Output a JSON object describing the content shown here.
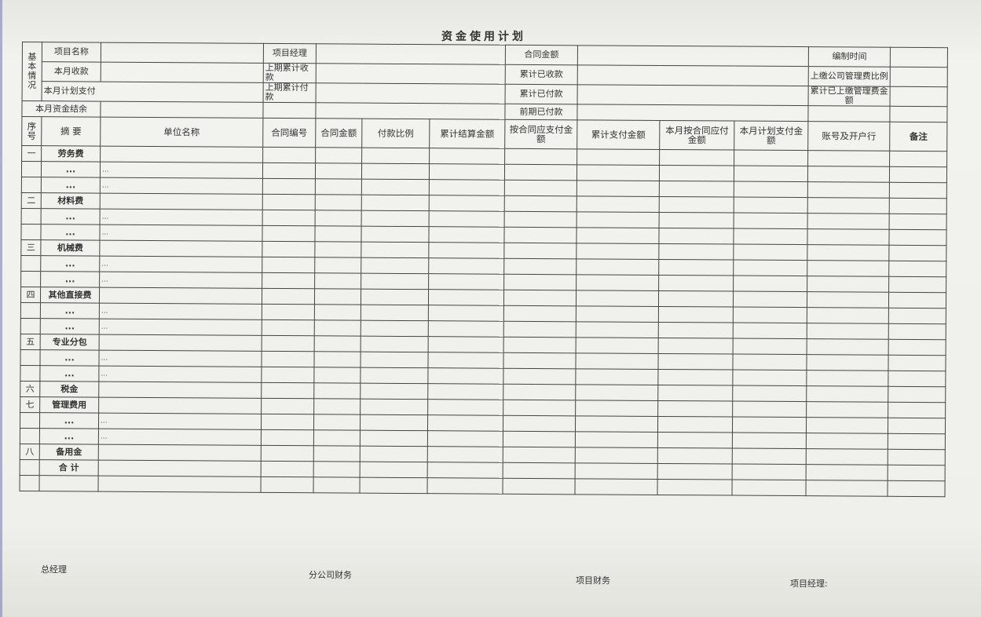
{
  "title": "资金使用计划",
  "basic_info": {
    "section_label": "基本情况",
    "project_name": "项目名称",
    "month_receipt": "本月收款",
    "month_plan_pay": "本月计划支付",
    "month_balance": "本月资金结余",
    "project_manager": "项目经理",
    "prev_cum_receipt": "上期累计收款",
    "prev_cum_pay": "上期累计付款",
    "contract_amount": "合同金额",
    "cum_received": "累计已收款",
    "cum_paid": "累计已付款",
    "prior_paid": "前期已付款",
    "compile_time": "编制时间",
    "mgmt_fee_ratio": "上缴公司管理费比例",
    "cum_mgmt_fee": "累计已上缴管理费金额"
  },
  "columns": [
    "序号",
    "摘 要",
    "单位名称",
    "合同编号",
    "合同金额",
    "付款比例",
    "累计结算金额",
    "按合同应支付金额",
    "累计支付金额",
    "本月按合同应付金额",
    "本月计划支付金额",
    "账号及开户行",
    "备注"
  ],
  "rows": [
    {
      "no": "一",
      "item": "劳务费",
      "unit": ""
    },
    {
      "no": "",
      "item": "...",
      "unit": "..."
    },
    {
      "no": "",
      "item": "...",
      "unit": "..."
    },
    {
      "no": "二",
      "item": "材料费",
      "unit": ""
    },
    {
      "no": "",
      "item": "...",
      "unit": "..."
    },
    {
      "no": "",
      "item": "...",
      "unit": "..."
    },
    {
      "no": "三",
      "item": "机械费",
      "unit": ""
    },
    {
      "no": "",
      "item": "...",
      "unit": "..."
    },
    {
      "no": "",
      "item": "...",
      "unit": "..."
    },
    {
      "no": "四",
      "item": "其他直接费",
      "unit": ""
    },
    {
      "no": "",
      "item": "...",
      "unit": "..."
    },
    {
      "no": "",
      "item": "...",
      "unit": "..."
    },
    {
      "no": "五",
      "item": "专业分包",
      "unit": ""
    },
    {
      "no": "",
      "item": "...",
      "unit": "..."
    },
    {
      "no": "",
      "item": "...",
      "unit": "..."
    },
    {
      "no": "六",
      "item": "税金",
      "unit": ""
    },
    {
      "no": "七",
      "item": "管理费用",
      "unit": ""
    },
    {
      "no": "",
      "item": "...",
      "unit": "..."
    },
    {
      "no": "",
      "item": "...",
      "unit": "..."
    },
    {
      "no": "八",
      "item": "备用金",
      "unit": ""
    },
    {
      "no": "",
      "item": "合 计",
      "unit": ""
    },
    {
      "no": "",
      "item": "",
      "unit": ""
    }
  ],
  "footer": {
    "general_manager": "总经理",
    "branch_finance": "分公司财务",
    "project_finance": "项目财务",
    "project_manager": "项目经理:"
  }
}
